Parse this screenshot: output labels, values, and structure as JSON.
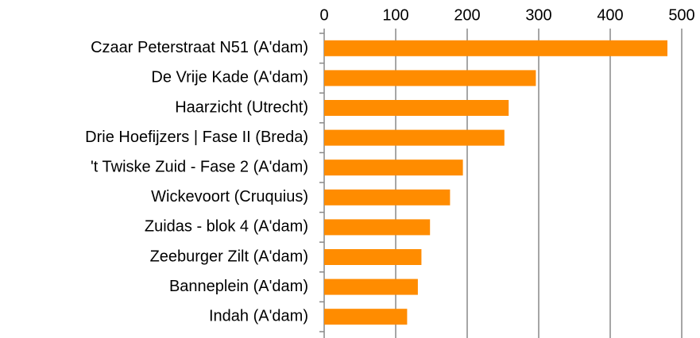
{
  "chart_data": {
    "type": "bar",
    "orientation": "horizontal",
    "categories": [
      "Czaar Peterstraat N51 (A'dam)",
      "De Vrije Kade (A'dam)",
      "Haarzicht (Utrecht)",
      "Drie Hoefijzers | Fase II (Breda)",
      "'t Twiske Zuid - Fase 2 (A'dam)",
      "Wickevoort (Cruquius)",
      "Zuidas - blok 4 (A'dam)",
      "Zeeburger Zilt (A'dam)",
      "Banneplein (A'dam)",
      "Indah (A'dam)"
    ],
    "values": [
      480,
      296,
      258,
      252,
      194,
      176,
      148,
      136,
      131,
      116
    ],
    "color": "#ff8c00",
    "xlim": [
      0,
      500
    ],
    "xticks": [
      0,
      100,
      200,
      300,
      400,
      500
    ],
    "grid": true
  }
}
